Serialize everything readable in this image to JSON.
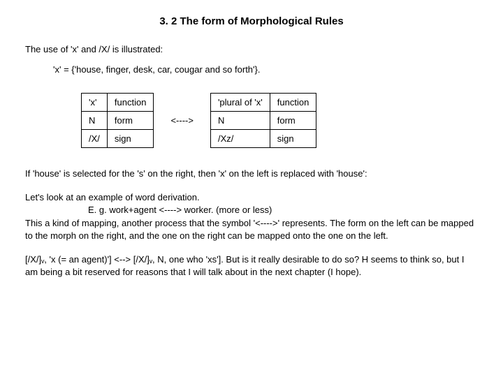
{
  "title": "3. 2 The form of Morphological Rules",
  "intro": "The use of 'x' and /X/ is illustrated:",
  "definition": "'x' = {'house, finger, desk, car, cougar and so forth'}.",
  "left_table": {
    "r0c0": "'x'",
    "r0c1": "function",
    "r1c0": "N",
    "r1c1": "form",
    "r2c0": "/X/",
    "r2c1": "sign"
  },
  "arrow": "<---->",
  "right_table": {
    "r0c0": "'plural of 'x'",
    "r0c1": "function",
    "r1c0": "N",
    "r1c1": "form",
    "r2c0": "/Xz/",
    "r2c1": "sign"
  },
  "para1": "If 'house' is selected for the 's' on the right, then 'x' on the left is replaced with 'house':",
  "para2_line1": "Let's look at an example of word derivation.",
  "para2_example": "E. g. work+agent <----> worker. (more or less)",
  "para2_line2": "This a kind of mapping, another process that the symbol '<---->' represents. The form on the left can be mapped to the morph on the right, and the one on the right can be mapped onto the one on the left.",
  "para3": "[/X/]ᵥ, 'x (= an agent)'] <--> [/X/]ᵥ, N, one who 'xs']. But is it really desirable to do so? H seems to think so, but I am being a bit reserved for reasons that I will talk about in the next chapter (I hope)."
}
